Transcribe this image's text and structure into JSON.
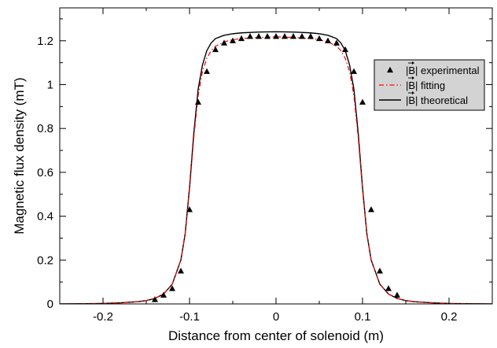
{
  "chart_data": {
    "type": "line",
    "title": "",
    "xlabel": "Distance from center of solenoid (m)",
    "ylabel": "Magnetic flux density (mT)",
    "xlim": [
      -0.25,
      0.25
    ],
    "ylim": [
      0,
      1.35
    ],
    "xticks": [
      -0.2,
      -0.1,
      0,
      0.1,
      0.2
    ],
    "xtick_labels": [
      "-0.2",
      "-0.1",
      "0",
      "0.1",
      "0.2"
    ],
    "yticks": [
      0,
      0.2,
      0.4,
      0.6,
      0.8,
      1.0,
      1.2
    ],
    "ytick_labels": [
      "0",
      "0.2",
      "0.4",
      "0.6",
      "0.8",
      "1",
      "1.2"
    ],
    "grid": false,
    "legend_position": "top-right",
    "legend": [
      {
        "label": "|B| experimental",
        "style": "black triangle markers"
      },
      {
        "label": "|B| fitting",
        "style": "red dash-dot line"
      },
      {
        "label": "|B| theoretical",
        "style": "black solid line"
      }
    ],
    "colors": {
      "experimental": "#000000",
      "fitting": "#ff0000",
      "theoretical": "#000000",
      "legend_bg": "#d3d3d3"
    },
    "series": [
      {
        "name": "|B| experimental",
        "kind": "markers",
        "x": [
          -0.14,
          -0.13,
          -0.12,
          -0.11,
          -0.1,
          -0.09,
          -0.08,
          -0.07,
          -0.06,
          -0.05,
          -0.04,
          -0.03,
          -0.02,
          -0.01,
          0.0,
          0.01,
          0.02,
          0.03,
          0.04,
          0.05,
          0.06,
          0.07,
          0.08,
          0.09,
          0.1,
          0.11,
          0.12,
          0.13,
          0.14
        ],
        "y": [
          0.02,
          0.04,
          0.07,
          0.15,
          0.43,
          0.92,
          1.06,
          1.16,
          1.19,
          1.2,
          1.21,
          1.22,
          1.22,
          1.22,
          1.22,
          1.22,
          1.22,
          1.22,
          1.22,
          1.21,
          1.2,
          1.19,
          1.16,
          1.06,
          0.92,
          0.43,
          0.15,
          0.07,
          0.04
        ]
      },
      {
        "name": "|B| fitting",
        "kind": "dashdot",
        "x": [
          -0.25,
          -0.22,
          -0.2,
          -0.18,
          -0.16,
          -0.15,
          -0.14,
          -0.13,
          -0.12,
          -0.11,
          -0.105,
          -0.1,
          -0.095,
          -0.09,
          -0.085,
          -0.08,
          -0.075,
          -0.07,
          -0.06,
          -0.05,
          -0.04,
          -0.02,
          0.0,
          0.02,
          0.04,
          0.05,
          0.06,
          0.07,
          0.075,
          0.08,
          0.085,
          0.09,
          0.095,
          0.1,
          0.105,
          0.11,
          0.12,
          0.13,
          0.14,
          0.15,
          0.16,
          0.18,
          0.2,
          0.22,
          0.25
        ],
        "y": [
          0.0,
          0.001,
          0.002,
          0.005,
          0.01,
          0.015,
          0.025,
          0.045,
          0.09,
          0.2,
          0.32,
          0.52,
          0.76,
          0.95,
          1.06,
          1.12,
          1.155,
          1.175,
          1.195,
          1.205,
          1.21,
          1.215,
          1.218,
          1.215,
          1.21,
          1.205,
          1.195,
          1.175,
          1.155,
          1.12,
          1.06,
          0.95,
          0.76,
          0.52,
          0.32,
          0.2,
          0.09,
          0.045,
          0.025,
          0.015,
          0.01,
          0.005,
          0.002,
          0.001,
          0.0
        ]
      },
      {
        "name": "|B| theoretical",
        "kind": "solid",
        "x": [
          -0.25,
          -0.22,
          -0.2,
          -0.18,
          -0.16,
          -0.15,
          -0.14,
          -0.13,
          -0.12,
          -0.11,
          -0.105,
          -0.1,
          -0.095,
          -0.09,
          -0.085,
          -0.08,
          -0.075,
          -0.07,
          -0.06,
          -0.05,
          -0.04,
          -0.02,
          0.0,
          0.02,
          0.04,
          0.05,
          0.06,
          0.07,
          0.075,
          0.08,
          0.085,
          0.09,
          0.095,
          0.1,
          0.105,
          0.11,
          0.12,
          0.13,
          0.14,
          0.15,
          0.16,
          0.18,
          0.2,
          0.22,
          0.25
        ],
        "y": [
          0.0,
          0.001,
          0.002,
          0.005,
          0.01,
          0.015,
          0.025,
          0.045,
          0.09,
          0.2,
          0.32,
          0.53,
          0.78,
          0.98,
          1.09,
          1.155,
          1.19,
          1.21,
          1.225,
          1.232,
          1.236,
          1.24,
          1.241,
          1.24,
          1.236,
          1.232,
          1.225,
          1.21,
          1.19,
          1.155,
          1.09,
          0.98,
          0.78,
          0.53,
          0.32,
          0.2,
          0.09,
          0.045,
          0.025,
          0.015,
          0.01,
          0.005,
          0.002,
          0.001,
          0.0
        ]
      }
    ]
  }
}
